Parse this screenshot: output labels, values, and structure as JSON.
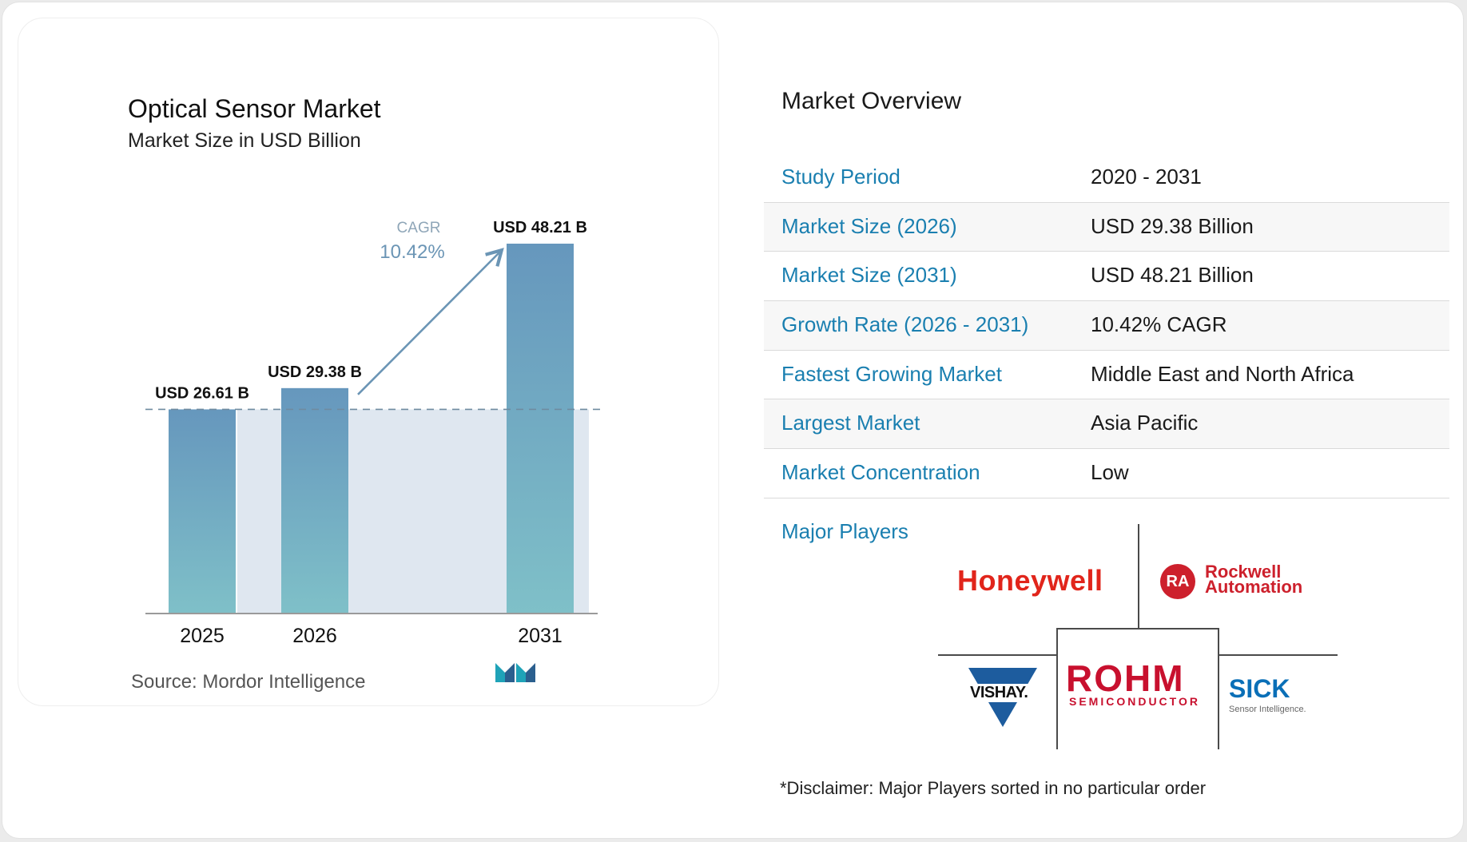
{
  "chart_data": {
    "type": "bar",
    "title": "Optical Sensor Market",
    "subtitle": "Market Size in USD Billion",
    "categories": [
      "2025",
      "2026",
      "2031"
    ],
    "values": [
      26.61,
      29.38,
      48.21
    ],
    "value_labels": [
      "USD 26.61 B",
      "USD 29.38 B",
      "USD 48.21 B"
    ],
    "ylim": [
      0,
      48.21
    ],
    "annotation": {
      "label": "CAGR",
      "value": "10.42%"
    },
    "bar_gradient": [
      "#6697bd",
      "#7fc0c8"
    ],
    "reference_line_color": "#6f8ba0",
    "shade_color": "#dfe7f0"
  },
  "source": "Source:  Mordor Intelligence",
  "overview": {
    "title": "Market Overview",
    "rows": [
      {
        "key": "Study Period",
        "value": "2020 - 2031"
      },
      {
        "key": "Market Size (2026)",
        "value": "USD 29.38 Billion"
      },
      {
        "key": "Market Size (2031)",
        "value": "USD 48.21 Billion"
      },
      {
        "key": "Growth Rate (2026 - 2031)",
        "value": "10.42% CAGR"
      },
      {
        "key": "Fastest Growing Market",
        "value": "Middle East and North Africa"
      },
      {
        "key": "Largest Market",
        "value": "Asia Pacific"
      },
      {
        "key": "Market Concentration",
        "value": "Low"
      }
    ]
  },
  "players": {
    "title": "Major Players",
    "honeywell": "Honeywell",
    "rockwell_badge": "RA",
    "rockwell_line1": "Rockwell",
    "rockwell_line2": "Automation",
    "rohm": "ROHM",
    "rohm_sub": "SEMICONDUCTOR",
    "vishay": "VISHAY.",
    "sick": "SICK",
    "sick_tag": "Sensor Intelligence."
  },
  "disclaimer": "*Disclaimer: Major Players sorted in no particular order",
  "colors": {
    "accent": "#1a7fb0",
    "brand_red": "#e1251b",
    "logo_teal": "#1fa3b8"
  }
}
